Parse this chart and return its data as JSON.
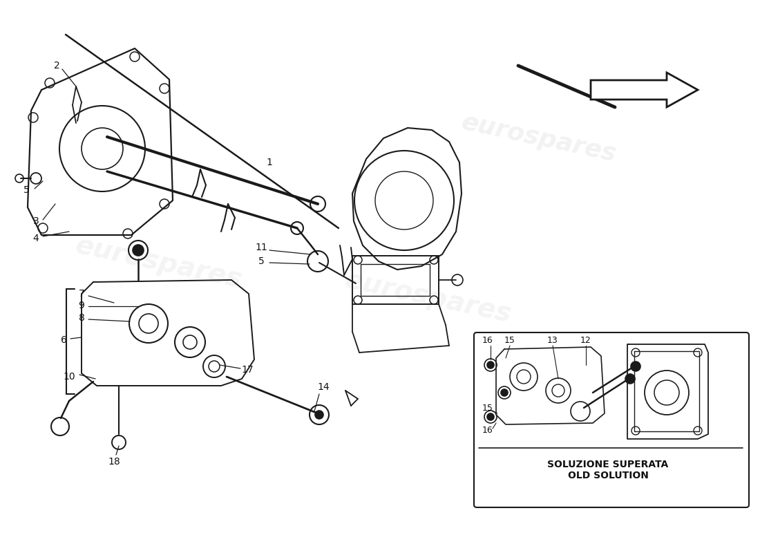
{
  "bg_color": "#ffffff",
  "watermark_text": "eurospares",
  "watermark_color": "#cccccc",
  "line_color": "#1a1a1a",
  "text_color": "#111111",
  "watermark_alpha": 0.22,
  "soluzione_text": "SOLUZIONE SUPERATA\nOLD SOLUTION",
  "figsize": [
    11.0,
    8.0
  ],
  "dpi": 100
}
